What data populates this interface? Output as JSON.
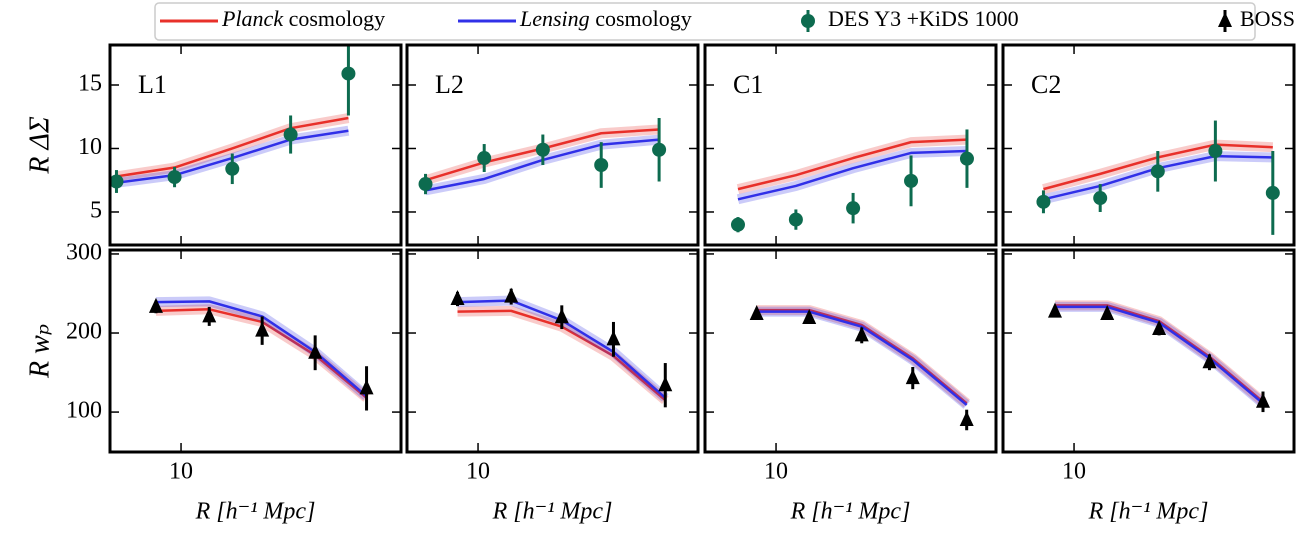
{
  "chart_data": {
    "type": "line",
    "xscale": "log",
    "xlim": [
      5.7,
      57
    ],
    "xticks": [
      10
    ],
    "xlabel": "R [h⁻¹ Mpc]",
    "rows": [
      {
        "ylabel": "R ΔΣ",
        "ylim": [
          2.4,
          18.15
        ],
        "yticks": [
          5,
          10,
          15
        ]
      },
      {
        "ylabel": "R wₚ",
        "ylim": [
          49.5,
          305
        ],
        "yticks": [
          100,
          200,
          300
        ]
      }
    ],
    "series": [
      {
        "name": "Planck cosmology",
        "color": "#e8302a"
      },
      {
        "name": "Lensing cosmology",
        "color": "#3030e8"
      },
      {
        "name": "DES Y3 +KiDS 1000",
        "color": "#0d6b4f",
        "marker": "circle"
      },
      {
        "name": "BOSS",
        "color": "#000000",
        "marker": "triangle"
      }
    ],
    "panels": [
      {
        "label": "L1",
        "rows": [
          {
            "x": [
              6.0,
              9.5,
              15.0,
              23.8,
              37.6
            ],
            "planck": [
              7.8,
              8.5,
              10.0,
              11.6,
              12.4
            ],
            "lensing": [
              7.3,
              7.9,
              9.25,
              10.7,
              11.4
            ],
            "obs": [
              7.4,
              7.75,
              8.4,
              11.1,
              15.9
            ],
            "err": [
              0.9,
              0.8,
              1.2,
              1.5,
              3.3
            ]
          },
          {
            "x": [
              8.2,
              12.5,
              19.0,
              28.9,
              43.4
            ],
            "planck": [
              228,
              230,
              214,
              172,
              118
            ],
            "lensing": [
              239,
              240,
              221,
              176,
              120
            ],
            "obs": [
              233,
              221,
              203,
              175,
              130
            ],
            "err": [
              8,
              12,
              18,
              22,
              28
            ]
          }
        ]
      },
      {
        "label": "L2",
        "rows": [
          {
            "x": [
              6.6,
              10.5,
              16.7,
              26.5,
              41.9
            ],
            "planck": [
              7.5,
              8.9,
              10.0,
              11.2,
              11.5
            ],
            "lensing": [
              6.7,
              7.6,
              9.1,
              10.3,
              10.7
            ],
            "obs": [
              7.2,
              9.25,
              9.9,
              8.7,
              9.9
            ],
            "err": [
              0.8,
              1.1,
              1.2,
              1.8,
              2.5
            ]
          },
          {
            "x": [
              8.5,
              13.0,
              19.4,
              29.2,
              44.0
            ],
            "planck": [
              227,
              228,
              208,
              171,
              115
            ],
            "lensing": [
              239,
              241,
              216,
              176,
              118
            ],
            "obs": [
              243,
              246,
              220,
              192,
              134
            ],
            "err": [
              9,
              10,
              15,
              22,
              28
            ]
          }
        ]
      },
      {
        "label": "C1",
        "rows": [
          {
            "x": [
              7.4,
              11.7,
              18.4,
              29.1,
              45.3
            ],
            "planck": [
              6.8,
              7.9,
              9.25,
              10.5,
              10.7
            ],
            "lensing": [
              6.0,
              7.05,
              8.45,
              9.65,
              9.8
            ],
            "obs": [
              4.0,
              4.4,
              5.3,
              7.45,
              9.2
            ],
            "err": [
              0.6,
              0.8,
              1.2,
              2.0,
              2.3
            ]
          },
          {
            "x": [
              8.58,
              13.0,
              19.7,
              29.5,
              45.2
            ],
            "planck": [
              229,
              229,
              210,
              168,
              111
            ],
            "lensing": [
              227,
              227,
              208,
              166,
              109
            ],
            "obs": [
              224,
              219,
              197,
              143,
              90
            ],
            "err": [
              6,
              6,
              10,
              14,
              13
            ]
          }
        ]
      },
      {
        "label": "C2",
        "rows": [
          {
            "x": [
              7.85,
              12.3,
              19.4,
              30.6,
              48.2
            ],
            "planck": [
              6.8,
              8.0,
              9.3,
              10.3,
              10.1
            ],
            "lensing": [
              6.0,
              7.05,
              8.45,
              9.4,
              9.3
            ],
            "obs": [
              5.8,
              6.1,
              8.2,
              9.8,
              6.5
            ],
            "err": [
              0.9,
              1.1,
              1.6,
              2.4,
              3.3
            ]
          },
          {
            "x": [
              8.6,
              13.0,
              19.6,
              29.2,
              44.6
            ],
            "planck": [
              235,
              235,
              215,
              170,
              113
            ],
            "lensing": [
              233,
              233,
              213,
              168,
              111
            ],
            "obs": [
              227,
              224,
              205,
              163,
              113
            ],
            "err": [
              5,
              6,
              8,
              10,
              13
            ]
          }
        ]
      }
    ]
  }
}
